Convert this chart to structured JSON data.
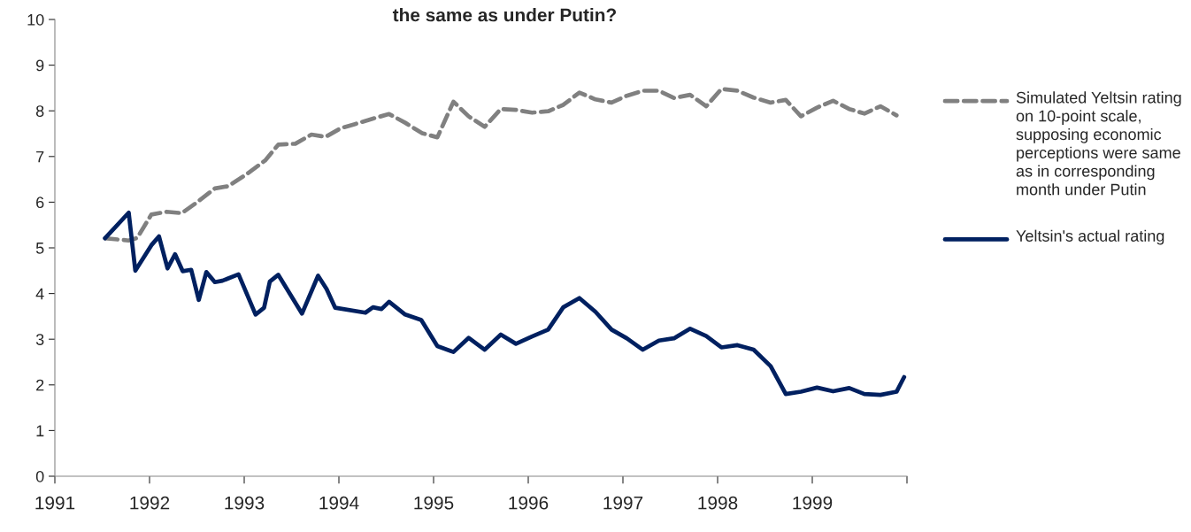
{
  "chart_data": {
    "type": "line",
    "title": "the same as under Putin?",
    "xlim": [
      1991,
      2000
    ],
    "xticks": [
      1991,
      1992,
      1993,
      1994,
      1995,
      1996,
      1997,
      1998,
      1999,
      {
        "value": 2000,
        "label": null
      }
    ],
    "ylim": [
      0,
      10
    ],
    "yticks": [
      0,
      1,
      2,
      3,
      4,
      5,
      6,
      7,
      8,
      9,
      10
    ],
    "grid": false,
    "legend": "right",
    "series": [
      {
        "name": "Simulated Yeltsin rating on 10-point scale, supposing economic perceptions were same as in corresponding month under Putin",
        "color": "#808080",
        "line_style": "dashed",
        "x": [
          1991.53,
          1991.78,
          1991.87,
          1992.02,
          1992.18,
          1992.34,
          1992.49,
          1992.69,
          1992.83,
          1993.01,
          1993.22,
          1993.36,
          1993.54,
          1993.71,
          1993.86,
          1994.02,
          1994.17,
          1994.36,
          1994.53,
          1994.7,
          1994.88,
          1995.04,
          1995.21,
          1995.37,
          1995.54,
          1995.71,
          1995.87,
          1996.04,
          1996.21,
          1996.37,
          1996.54,
          1996.71,
          1996.88,
          1997.04,
          1997.21,
          1997.38,
          1997.54,
          1997.71,
          1997.88,
          1998.04,
          1998.21,
          1998.38,
          1998.56,
          1998.72,
          1998.88,
          1999.05,
          1999.22,
          1999.39,
          1999.55,
          1999.72,
          1999.89
        ],
        "values": [
          5.21,
          5.16,
          5.22,
          5.73,
          5.79,
          5.76,
          5.98,
          6.3,
          6.35,
          6.59,
          6.91,
          7.26,
          7.28,
          7.48,
          7.43,
          7.62,
          7.71,
          7.83,
          7.93,
          7.74,
          7.51,
          7.42,
          8.2,
          7.88,
          7.65,
          8.04,
          8.02,
          7.96,
          7.99,
          8.13,
          8.4,
          8.25,
          8.18,
          8.33,
          8.44,
          8.44,
          8.28,
          8.35,
          8.1,
          8.48,
          8.44,
          8.29,
          8.18,
          8.24,
          7.88,
          8.07,
          8.22,
          8.04,
          7.94,
          8.1,
          7.9
        ]
      },
      {
        "name": "Yeltsin's actual rating",
        "color": "#002060",
        "line_style": "solid",
        "x": [
          1991.53,
          1991.78,
          1991.85,
          1992.02,
          1992.1,
          1992.19,
          1992.27,
          1992.35,
          1992.44,
          1992.52,
          1992.6,
          1992.69,
          1992.77,
          1992.94,
          1993.12,
          1993.21,
          1993.27,
          1993.36,
          1993.61,
          1993.78,
          1993.87,
          1993.96,
          1994.28,
          1994.36,
          1994.45,
          1994.53,
          1994.7,
          1994.87,
          1995.04,
          1995.21,
          1995.37,
          1995.54,
          1995.71,
          1995.87,
          1996.04,
          1996.21,
          1996.37,
          1996.54,
          1996.71,
          1996.88,
          1997.04,
          1997.21,
          1997.38,
          1997.54,
          1997.71,
          1997.88,
          1998.04,
          1998.21,
          1998.38,
          1998.56,
          1998.72,
          1998.88,
          1999.05,
          1999.22,
          1999.39,
          1999.55,
          1999.72,
          1999.89,
          1999.97
        ],
        "values": [
          5.21,
          5.77,
          4.5,
          5.06,
          5.25,
          4.55,
          4.86,
          4.49,
          4.52,
          3.86,
          4.47,
          4.25,
          4.28,
          4.42,
          3.54,
          3.69,
          4.26,
          4.41,
          3.56,
          4.39,
          4.1,
          3.69,
          3.58,
          3.7,
          3.66,
          3.82,
          3.54,
          3.42,
          2.85,
          2.72,
          3.03,
          2.77,
          3.1,
          2.9,
          3.06,
          3.21,
          3.7,
          3.9,
          3.6,
          3.21,
          3.02,
          2.77,
          2.97,
          3.02,
          3.23,
          3.07,
          2.82,
          2.87,
          2.77,
          2.41,
          1.8,
          1.85,
          1.94,
          1.86,
          1.93,
          1.8,
          1.78,
          1.85,
          2.17
        ]
      }
    ]
  }
}
